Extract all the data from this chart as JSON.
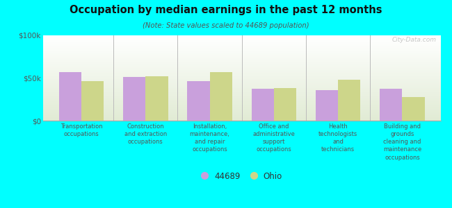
{
  "title": "Occupation by median earnings in the past 12 months",
  "subtitle": "(Note: State values scaled to 44689 population)",
  "categories": [
    "Transportation\noccupations",
    "Construction\nand extraction\noccupations",
    "Installation,\nmaintenance,\nand repair\noccupations",
    "Office and\nadministrative\nsupport\noccupations",
    "Health\ntechnologists\nand\ntechnicians",
    "Building and\ngrounds\ncleaning and\nmaintenance\noccupations"
  ],
  "values_44689": [
    57000,
    51000,
    46000,
    37000,
    36000,
    37000
  ],
  "values_ohio": [
    46000,
    52000,
    57000,
    38000,
    48000,
    28000
  ],
  "color_44689": "#c9a0dc",
  "color_ohio": "#cdd68a",
  "ylim": [
    0,
    100000
  ],
  "ytick_labels": [
    "$0",
    "$50k",
    "$100k"
  ],
  "background_color": "#00ffff",
  "watermark": "City-Data.com",
  "legend_label_1": "44689",
  "legend_label_2": "Ohio",
  "bar_width": 0.35
}
